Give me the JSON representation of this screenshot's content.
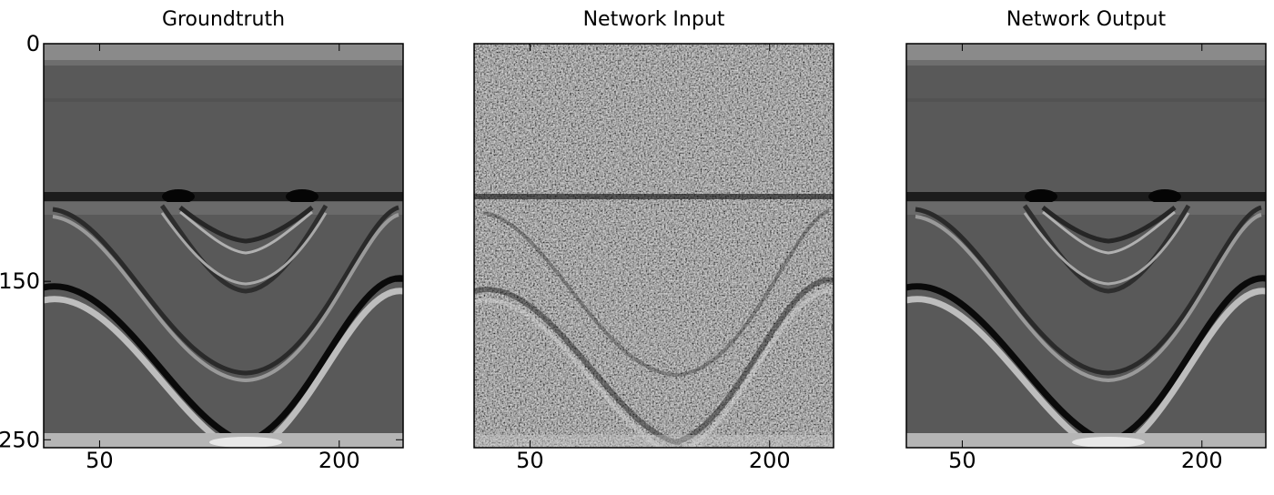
{
  "chart_data": [
    {
      "type": "image",
      "title": "Groundtruth",
      "xlim": [
        15,
        240
      ],
      "xticks": [
        50,
        200
      ],
      "ylim": [
        0,
        255
      ],
      "yticks": [
        0,
        150,
        250
      ]
    },
    {
      "type": "image",
      "title": "Network Input",
      "xlim": [
        15,
        240
      ],
      "xticks": [
        50,
        200
      ],
      "noisy": true
    },
    {
      "type": "image",
      "title": "Network Output",
      "xlim": [
        15,
        240
      ],
      "xticks": [
        50,
        200
      ]
    }
  ]
}
